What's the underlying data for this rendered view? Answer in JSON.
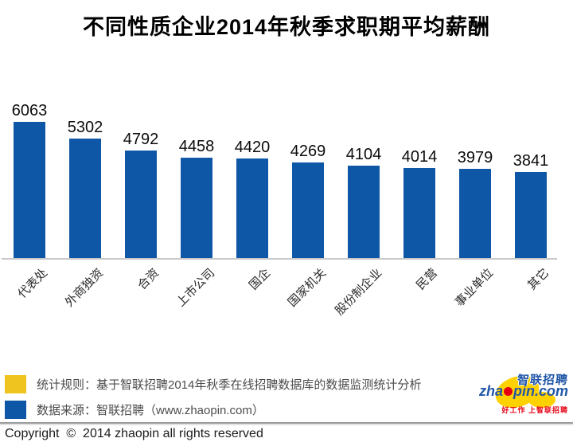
{
  "title": "不同性质企业2014年秋季求职期平均薪酬",
  "chart_data": {
    "type": "bar",
    "title": "不同性质企业2014年秋季求职期平均薪酬",
    "categories": [
      "代表处",
      "外商独资",
      "合资",
      "上市公司",
      "国企",
      "国家机关",
      "股份制企业",
      "民营",
      "事业单位",
      "其它"
    ],
    "values": [
      6063,
      5302,
      4792,
      4458,
      4420,
      4269,
      4104,
      4014,
      3979,
      3841
    ],
    "xlabel": "",
    "ylabel": "",
    "ylim": [
      0,
      6500
    ],
    "grid": false,
    "legend_position": "none",
    "data_labels": true,
    "bar_color": "#0e57a6",
    "axis_line_color": "#c8c8c8",
    "x_tick_rotation": 45
  },
  "legend": {
    "items": [
      {
        "swatch_color": "#f0c41e",
        "label": "统计规则：基于智联招聘2014年秋季在线招聘数据库的数据监测统计分析"
      },
      {
        "swatch_color": "#0e57a6",
        "label": "数据来源：智联招聘（www.zhaopin.com）"
      }
    ]
  },
  "footer": {
    "copyright": "Copyright  ©  2014 zhaopin all rights reserved"
  },
  "logo": {
    "brand_cn": "智联招聘",
    "domain_full": "zhaopin.com",
    "domain_pre": "zha",
    "domain_post": "pin.com",
    "tagline": "好工作 上智联招聘",
    "blue": "#2257a8",
    "red": "#e60012",
    "yellow": "#ffd100"
  }
}
